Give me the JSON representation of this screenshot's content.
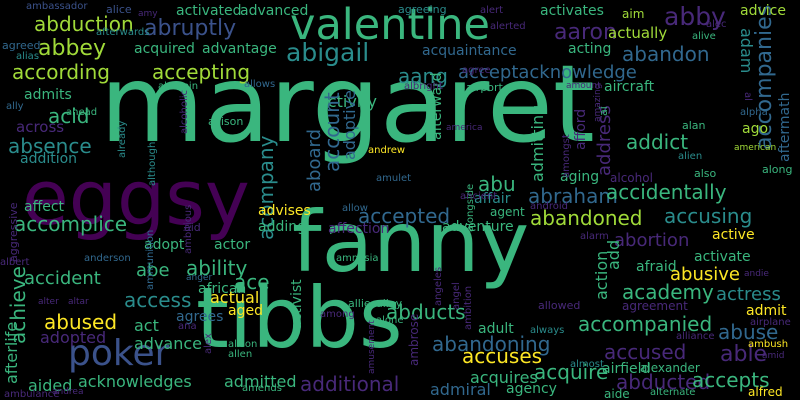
{
  "colors": {
    "background": "#000000",
    "green": "#3ab67e",
    "teal": "#2a8c8c",
    "blue": "#31688e",
    "darkblue": "#3b528b",
    "purple": "#482979",
    "violet": "#440154",
    "yellow": "#fde725",
    "lime": "#a0da39"
  },
  "words": [
    {
      "t": "margaret",
      "c": "green"
    },
    {
      "t": "fanny",
      "c": "green"
    },
    {
      "t": "tibbs",
      "c": "green"
    },
    {
      "t": "eggsy",
      "c": "violet"
    },
    {
      "t": "valentine",
      "c": "green"
    },
    {
      "t": "poker",
      "c": "darkblue"
    },
    {
      "t": "abigail",
      "c": "teal"
    },
    {
      "t": "abby",
      "c": "purple"
    },
    {
      "t": "aaron",
      "c": "purple"
    },
    {
      "t": "abbey",
      "c": "lime"
    },
    {
      "t": "abruptly",
      "c": "darkblue"
    },
    {
      "t": "abduction",
      "c": "lime"
    },
    {
      "t": "according",
      "c": "lime"
    },
    {
      "t": "accepting",
      "c": "lime"
    },
    {
      "t": "aang",
      "c": "teal"
    },
    {
      "t": "acceptacknowledge",
      "c": "blue"
    },
    {
      "t": "abandon",
      "c": "blue"
    },
    {
      "t": "accompanies",
      "c": "blue"
    },
    {
      "t": "actually",
      "c": "lime"
    },
    {
      "t": "acquired",
      "c": "green"
    },
    {
      "t": "advantage",
      "c": "green"
    },
    {
      "t": "acquaintance",
      "c": "blue"
    },
    {
      "t": "acting",
      "c": "green"
    },
    {
      "t": "activated",
      "c": "green"
    },
    {
      "t": "advanced",
      "c": "green"
    },
    {
      "t": "activates",
      "c": "green"
    },
    {
      "t": "advice",
      "c": "lime"
    },
    {
      "t": "aim",
      "c": "lime"
    },
    {
      "t": "adam",
      "c": "teal"
    },
    {
      "t": "acid",
      "c": "green"
    },
    {
      "t": "admits",
      "c": "green"
    },
    {
      "t": "across",
      "c": "purple"
    },
    {
      "t": "absence",
      "c": "teal"
    },
    {
      "t": "addition",
      "c": "teal"
    },
    {
      "t": "activity",
      "c": "green"
    },
    {
      "t": "account",
      "c": "blue"
    },
    {
      "t": "adoptive",
      "c": "blue"
    },
    {
      "t": "aboard",
      "c": "blue"
    },
    {
      "t": "acompany",
      "c": "teal"
    },
    {
      "t": "afterward",
      "c": "green"
    },
    {
      "t": "admitting",
      "c": "green"
    },
    {
      "t": "address",
      "c": "purple"
    },
    {
      "t": "afford",
      "c": "purple"
    },
    {
      "t": "addict",
      "c": "green"
    },
    {
      "t": "ago",
      "c": "lime"
    },
    {
      "t": "aftermath",
      "c": "blue"
    },
    {
      "t": "abu",
      "c": "green"
    },
    {
      "t": "abraham",
      "c": "blue"
    },
    {
      "t": "accidentally",
      "c": "green"
    },
    {
      "t": "affection",
      "c": "purple"
    },
    {
      "t": "affair",
      "c": "teal"
    },
    {
      "t": "aging",
      "c": "green"
    },
    {
      "t": "alcohol",
      "c": "purple"
    },
    {
      "t": "advises",
      "c": "yellow"
    },
    {
      "t": "accepted",
      "c": "blue"
    },
    {
      "t": "abandoned",
      "c": "lime"
    },
    {
      "t": "accusing",
      "c": "teal"
    },
    {
      "t": "affect",
      "c": "green"
    },
    {
      "t": "accomplice",
      "c": "green"
    },
    {
      "t": "adopt",
      "c": "green"
    },
    {
      "t": "adding",
      "c": "green"
    },
    {
      "t": "adventure",
      "c": "green"
    },
    {
      "t": "abortion",
      "c": "purple"
    },
    {
      "t": "active",
      "c": "yellow"
    },
    {
      "t": "activist",
      "c": "green"
    },
    {
      "t": "afraid",
      "c": "green"
    },
    {
      "t": "activate",
      "c": "green"
    },
    {
      "t": "accident",
      "c": "green"
    },
    {
      "t": "abe",
      "c": "green"
    },
    {
      "t": "ability",
      "c": "green"
    },
    {
      "t": "ace",
      "c": "green"
    },
    {
      "t": "abusive",
      "c": "yellow"
    },
    {
      "t": "academy",
      "c": "green"
    },
    {
      "t": "actress",
      "c": "teal"
    },
    {
      "t": "access",
      "c": "teal"
    },
    {
      "t": "african",
      "c": "green"
    },
    {
      "t": "actual",
      "c": "yellow"
    },
    {
      "t": "abducts",
      "c": "green"
    },
    {
      "t": "admit",
      "c": "yellow"
    },
    {
      "t": "abused",
      "c": "yellow"
    },
    {
      "t": "act",
      "c": "green"
    },
    {
      "t": "agrees",
      "c": "blue"
    },
    {
      "t": "aged",
      "c": "yellow"
    },
    {
      "t": "accompanied",
      "c": "green"
    },
    {
      "t": "abuse",
      "c": "blue"
    },
    {
      "t": "achieve",
      "c": "green"
    },
    {
      "t": "adopted",
      "c": "purple"
    },
    {
      "t": "advance",
      "c": "green"
    },
    {
      "t": "abandoning",
      "c": "blue"
    },
    {
      "t": "accused",
      "c": "purple"
    },
    {
      "t": "able",
      "c": "purple"
    },
    {
      "t": "accuses",
      "c": "yellow"
    },
    {
      "t": "acquire",
      "c": "green"
    },
    {
      "t": "abducted",
      "c": "purple"
    },
    {
      "t": "accepts",
      "c": "green"
    },
    {
      "t": "afterlife",
      "c": "green"
    },
    {
      "t": "aided",
      "c": "green"
    },
    {
      "t": "acknowledges",
      "c": "green"
    },
    {
      "t": "admitted",
      "c": "green"
    },
    {
      "t": "additional",
      "c": "purple"
    },
    {
      "t": "acquires",
      "c": "green"
    },
    {
      "t": "admiral",
      "c": "blue"
    },
    {
      "t": "agency",
      "c": "green"
    },
    {
      "t": "adult",
      "c": "green"
    },
    {
      "t": "airfield",
      "c": "green"
    },
    {
      "t": "aide",
      "c": "green"
    },
    {
      "t": "alexander",
      "c": "green"
    },
    {
      "t": "alfred",
      "c": "yellow"
    },
    {
      "t": "ambassador",
      "c": "darkblue"
    },
    {
      "t": "agreed",
      "c": "blue"
    },
    {
      "t": "alias",
      "c": "teal"
    },
    {
      "t": "ally",
      "c": "blue"
    },
    {
      "t": "ahead",
      "c": "green"
    },
    {
      "t": "alamein",
      "c": "green"
    },
    {
      "t": "airport",
      "c": "green"
    },
    {
      "t": "albright",
      "c": "purple"
    },
    {
      "t": "agree",
      "c": "purple"
    },
    {
      "t": "aircraft",
      "c": "green"
    },
    {
      "t": "alive",
      "c": "green"
    },
    {
      "t": "alongside",
      "c": "green"
    },
    {
      "t": "alan",
      "c": "green"
    },
    {
      "t": "alpha",
      "c": "blue"
    },
    {
      "t": "american",
      "c": "lime"
    },
    {
      "t": "along",
      "c": "green"
    },
    {
      "t": "also",
      "c": "green"
    },
    {
      "t": "alien",
      "c": "teal"
    },
    {
      "t": "allison",
      "c": "green"
    },
    {
      "t": "allows",
      "c": "blue"
    },
    {
      "t": "alcoholic",
      "c": "purple"
    },
    {
      "t": "although",
      "c": "teal"
    },
    {
      "t": "already",
      "c": "teal"
    },
    {
      "t": "ammunition",
      "c": "blue"
    },
    {
      "t": "andrew",
      "c": "yellow"
    },
    {
      "t": "amulet",
      "c": "blue"
    },
    {
      "t": "allow",
      "c": "blue"
    },
    {
      "t": "ancient",
      "c": "purple"
    },
    {
      "t": "agent",
      "c": "green"
    },
    {
      "t": "android",
      "c": "purple"
    },
    {
      "t": "alarm",
      "c": "purple"
    },
    {
      "t": "amnesia",
      "c": "green"
    },
    {
      "t": "aggressive",
      "c": "purple"
    },
    {
      "t": "aid",
      "c": "purple"
    },
    {
      "t": "actor",
      "c": "green"
    },
    {
      "t": "anderson",
      "c": "blue"
    },
    {
      "t": "albert",
      "c": "purple"
    },
    {
      "t": "alter",
      "c": "purple"
    },
    {
      "t": "altar",
      "c": "purple"
    },
    {
      "t": "anger",
      "c": "blue"
    },
    {
      "t": "allie",
      "c": "green"
    },
    {
      "t": "alley",
      "c": "green"
    },
    {
      "t": "among",
      "c": "purple"
    },
    {
      "t": "alone",
      "c": "green"
    },
    {
      "t": "allowed",
      "c": "purple"
    },
    {
      "t": "agreement",
      "c": "purple"
    },
    {
      "t": "airplane",
      "c": "purple"
    },
    {
      "t": "ambush",
      "c": "yellow"
    },
    {
      "t": "amid",
      "c": "purple"
    },
    {
      "t": "alliance",
      "c": "purple"
    },
    {
      "t": "always",
      "c": "teal"
    },
    {
      "t": "almost",
      "c": "teal"
    },
    {
      "t": "alternate",
      "c": "green"
    },
    {
      "t": "alison",
      "c": "green"
    },
    {
      "t": "allen",
      "c": "green"
    },
    {
      "t": "alex",
      "c": "purple"
    },
    {
      "t": "ana",
      "c": "purple"
    },
    {
      "t": "amusement",
      "c": "purple"
    },
    {
      "t": "amends",
      "c": "green"
    },
    {
      "t": "ambulance",
      "c": "purple"
    },
    {
      "t": "andrea",
      "c": "purple"
    },
    {
      "t": "alice",
      "c": "darkblue"
    },
    {
      "t": "amy",
      "c": "purple"
    },
    {
      "t": "afterwards",
      "c": "teal"
    },
    {
      "t": "agreeing",
      "c": "teal"
    },
    {
      "t": "alert",
      "c": "purple"
    },
    {
      "t": "alerted",
      "c": "purple"
    },
    {
      "t": "alec",
      "c": "purple"
    },
    {
      "t": "amount",
      "c": "purple"
    },
    {
      "t": "amongst",
      "c": "purple"
    },
    {
      "t": "ambitious",
      "c": "purple"
    },
    {
      "t": "ambition",
      "c": "purple"
    },
    {
      "t": "ambrose",
      "c": "purple"
    },
    {
      "t": "angel",
      "c": "purple"
    },
    {
      "t": "angeles",
      "c": "purple"
    },
    {
      "t": "amazing",
      "c": "purple"
    },
    {
      "t": "andie",
      "c": "purple"
    },
    {
      "t": "al",
      "c": "purple"
    },
    {
      "t": "america",
      "c": "purple"
    },
    {
      "t": "action",
      "c": "green"
    },
    {
      "t": "add",
      "c": "green"
    },
    {
      "t": "ai",
      "c": "green"
    }
  ]
}
